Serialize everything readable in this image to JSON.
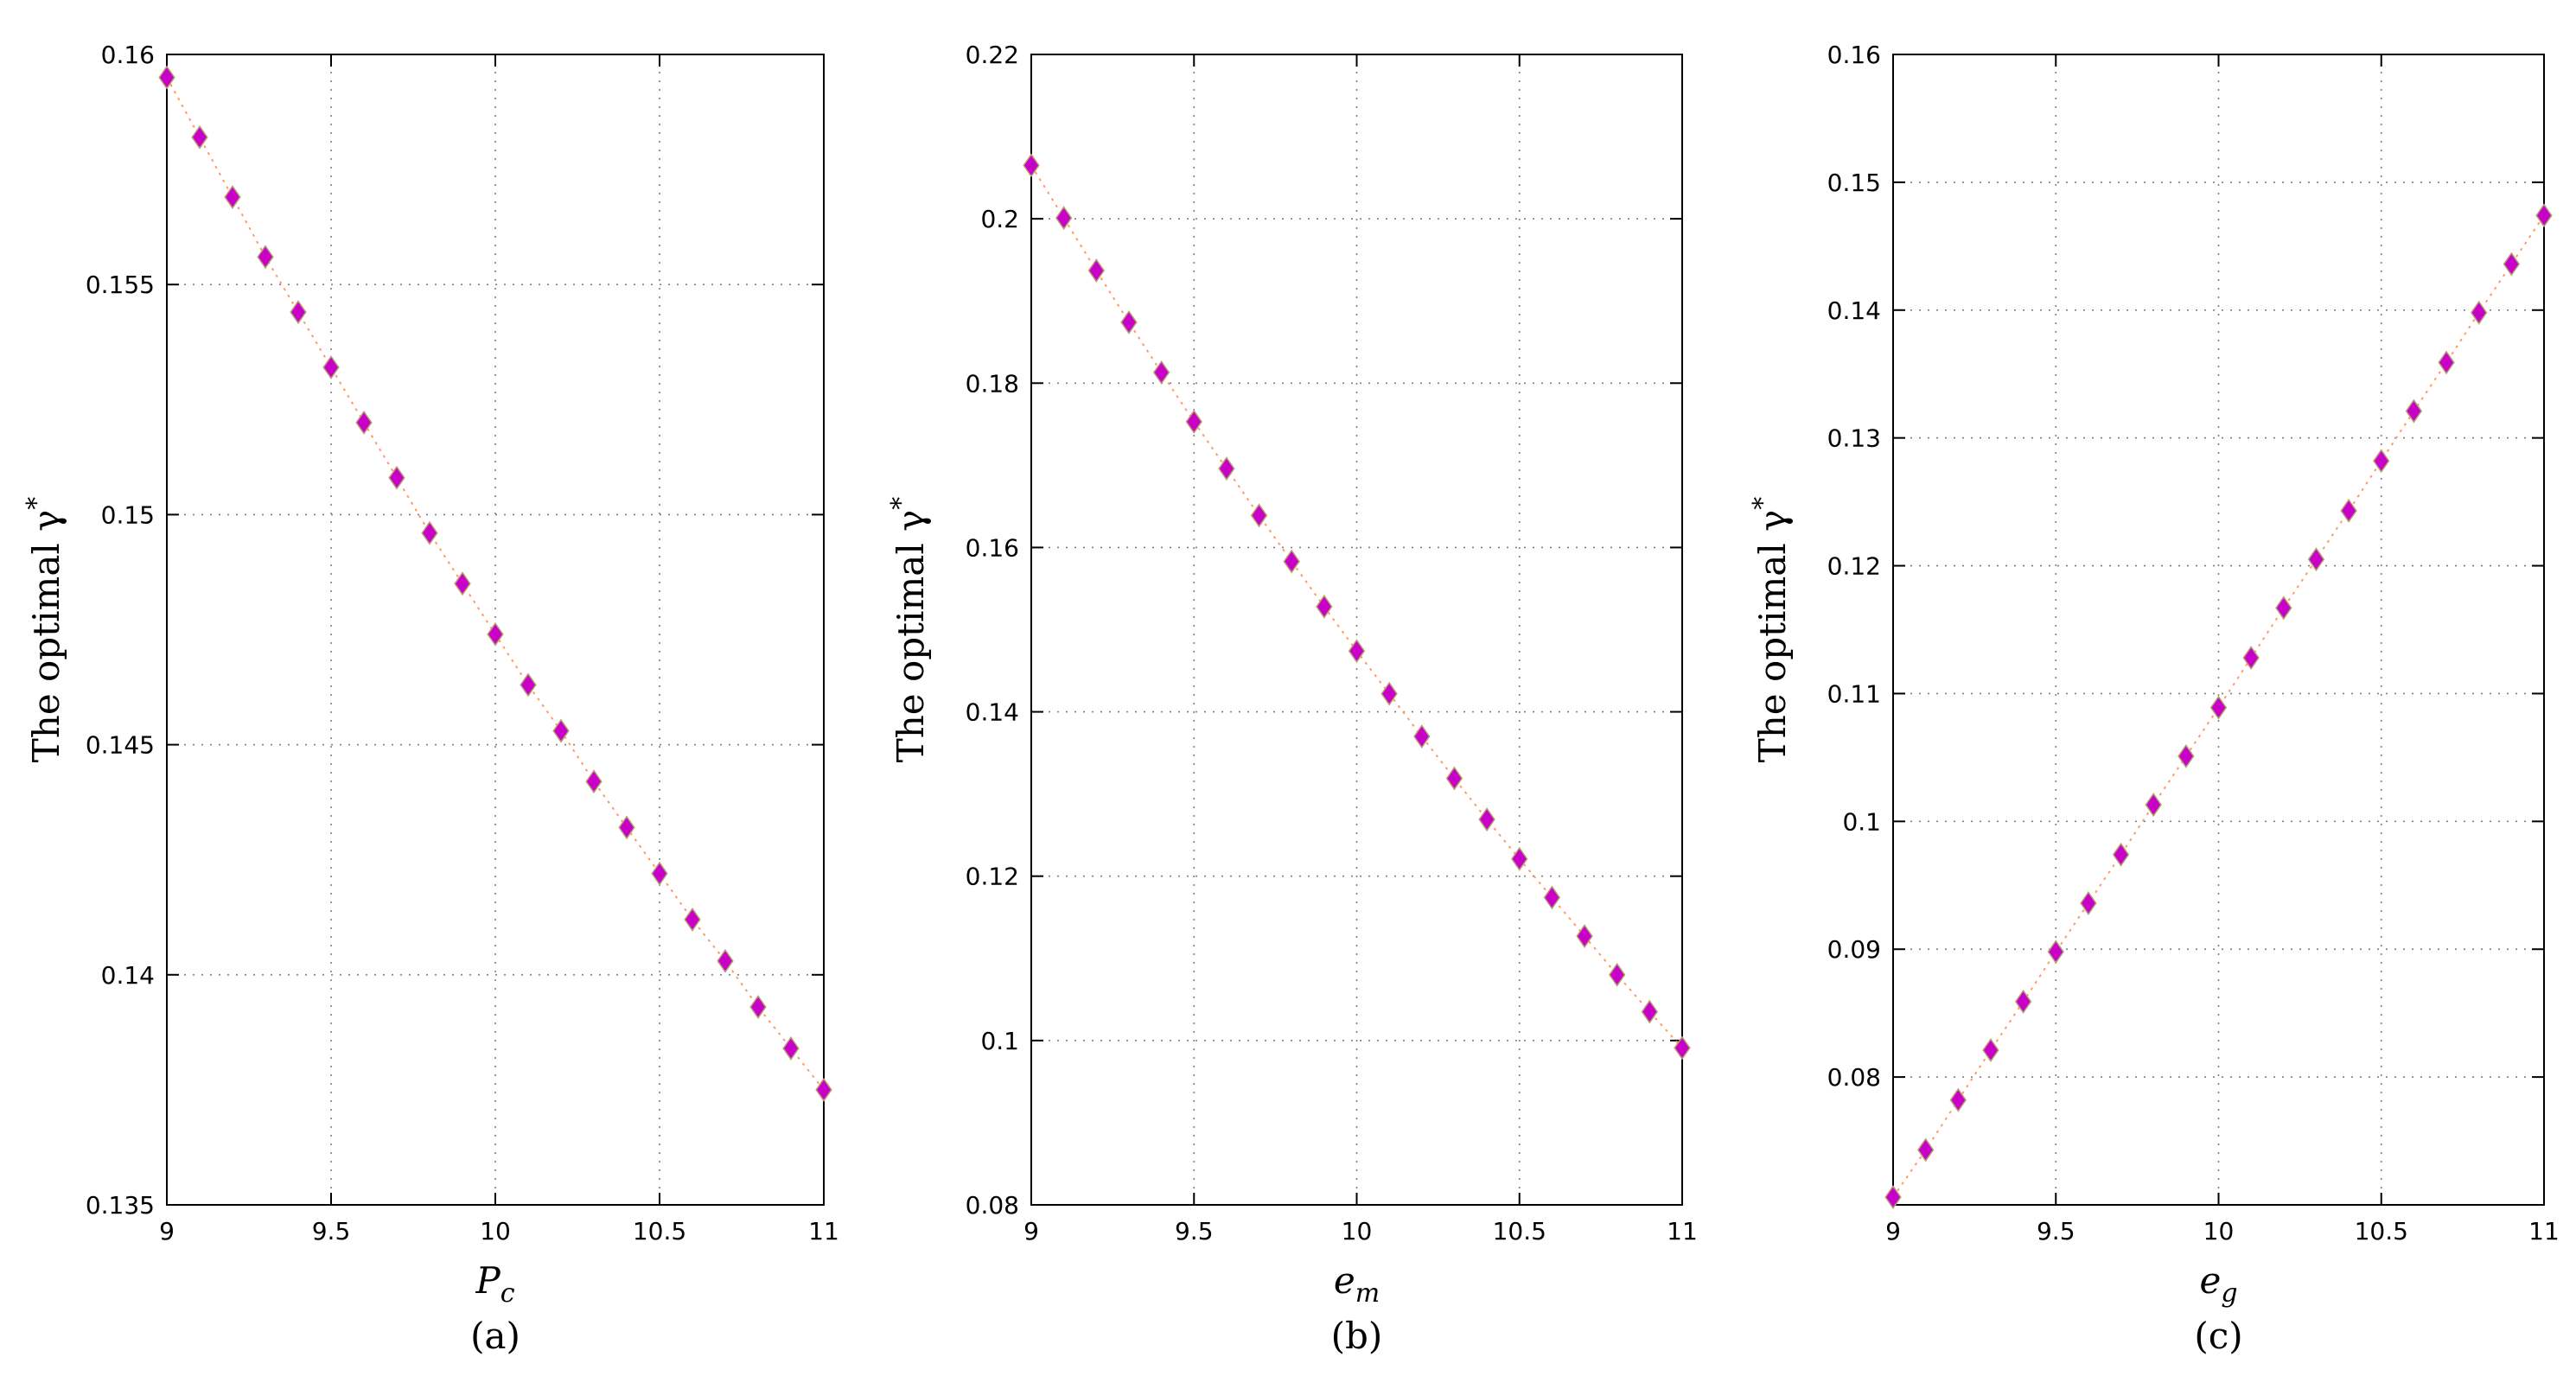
{
  "chart_data": [
    {
      "type": "scatter",
      "title": "",
      "xlabel_main": "P",
      "xlabel_sub": "c",
      "ylabel": "The optimal γ",
      "ylabel_sup": "*",
      "panel_label": "(a)",
      "xlim": [
        9,
        11
      ],
      "ylim": [
        0.135,
        0.16
      ],
      "xticks": [
        9,
        9.5,
        10,
        10.5,
        11
      ],
      "xtick_labels": [
        "9",
        "9.5",
        "10",
        "10.5",
        "11"
      ],
      "yticks": [
        0.135,
        0.14,
        0.145,
        0.15,
        0.155,
        0.16
      ],
      "ytick_labels": [
        "0.135",
        "0.14",
        "0.145",
        "0.15",
        "0.155",
        "0.16"
      ],
      "grid": true,
      "series": [
        {
          "marker": "diamond",
          "color": "#c800c8",
          "line_color": "#ff9a66",
          "x": [
            9,
            9.1,
            9.2,
            9.3,
            9.4,
            9.5,
            9.6,
            9.7,
            9.8,
            9.9,
            10,
            10.1,
            10.2,
            10.3,
            10.4,
            10.5,
            10.6,
            10.7,
            10.8,
            10.9,
            11
          ],
          "y": [
            0.1595,
            0.1582,
            0.1569,
            0.1556,
            0.1544,
            0.1532,
            0.152,
            0.1508,
            0.1496,
            0.1485,
            0.1474,
            0.1463,
            0.1453,
            0.1442,
            0.1432,
            0.1422,
            0.1412,
            0.1403,
            0.1393,
            0.1384,
            0.1375
          ]
        }
      ]
    },
    {
      "type": "scatter",
      "title": "",
      "xlabel_main": "e",
      "xlabel_sub": "m",
      "ylabel": "The optimal γ",
      "ylabel_sup": "*",
      "panel_label": "(b)",
      "xlim": [
        9,
        11
      ],
      "ylim": [
        0.08,
        0.22
      ],
      "xticks": [
        9,
        9.5,
        10,
        10.5,
        11
      ],
      "xtick_labels": [
        "9",
        "9.5",
        "10",
        "10.5",
        "11"
      ],
      "yticks": [
        0.08,
        0.1,
        0.12,
        0.14,
        0.16,
        0.18,
        0.2,
        0.22
      ],
      "ytick_labels": [
        "0.08",
        "0.1",
        "0.12",
        "0.14",
        "0.16",
        "0.18",
        "0.2",
        "0.22"
      ],
      "grid": true,
      "series": [
        {
          "marker": "diamond",
          "color": "#c800c8",
          "line_color": "#ff9a66",
          "x": [
            9,
            9.1,
            9.2,
            9.3,
            9.4,
            9.5,
            9.6,
            9.7,
            9.8,
            9.9,
            10,
            10.1,
            10.2,
            10.3,
            10.4,
            10.5,
            10.6,
            10.7,
            10.8,
            10.9,
            11
          ],
          "y": [
            0.2065,
            0.2001,
            0.1937,
            0.1874,
            0.1813,
            0.1753,
            0.1696,
            0.1639,
            0.1583,
            0.1528,
            0.1474,
            0.1422,
            0.137,
            0.1319,
            0.1269,
            0.1221,
            0.1174,
            0.1127,
            0.108,
            0.1035,
            0.0991
          ]
        }
      ]
    },
    {
      "type": "scatter",
      "title": "",
      "xlabel_main": "e",
      "xlabel_sub": "g",
      "ylabel": "The optimal γ",
      "ylabel_sup": "*",
      "panel_label": "(c)",
      "xlim": [
        9,
        11
      ],
      "ylim": [
        0.07,
        0.16
      ],
      "xticks": [
        9,
        9.5,
        10,
        10.5,
        11
      ],
      "xtick_labels": [
        "9",
        "9.5",
        "10",
        "10.5",
        "11"
      ],
      "yticks": [
        0.08,
        0.09,
        0.1,
        0.11,
        0.12,
        0.13,
        0.14,
        0.15,
        0.16
      ],
      "ytick_labels": [
        "0.08",
        "0.09",
        "0.1",
        "0.11",
        "0.12",
        "0.13",
        "0.14",
        "0.15",
        "0.16"
      ],
      "grid": true,
      "series": [
        {
          "marker": "diamond",
          "color": "#c800c8",
          "line_color": "#ff9a66",
          "x": [
            9,
            9.1,
            9.2,
            9.3,
            9.4,
            9.5,
            9.6,
            9.7,
            9.8,
            9.9,
            10,
            10.1,
            10.2,
            10.3,
            10.4,
            10.5,
            10.6,
            10.7,
            10.8,
            10.9,
            11
          ],
          "y": [
            0.0706,
            0.0743,
            0.0782,
            0.0821,
            0.0859,
            0.0898,
            0.0936,
            0.0974,
            0.1013,
            0.1051,
            0.1089,
            0.1128,
            0.1167,
            0.1205,
            0.1243,
            0.1282,
            0.1321,
            0.1359,
            0.1398,
            0.1436,
            0.1474
          ]
        }
      ]
    }
  ]
}
